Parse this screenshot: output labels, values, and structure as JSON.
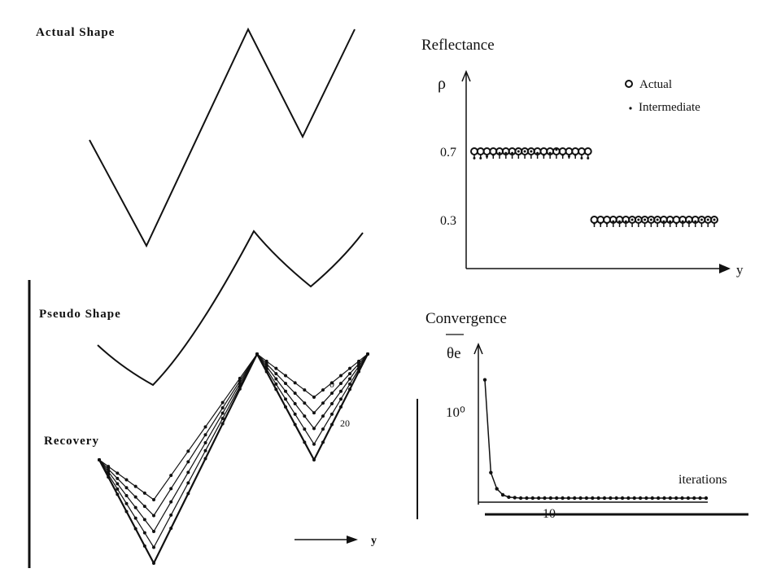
{
  "labels": {
    "actual_shape": "Actual Shape",
    "pseudo_shape": "Pseudo Shape",
    "recovery": "Recovery",
    "recovery_axis": "y",
    "recovery_iter_0": "0",
    "recovery_iter_20": "20",
    "reflectance_title": "Reflectance",
    "reflectance_ylabel": "ρ",
    "reflectance_xlabel": "y",
    "legend_actual": "Actual",
    "legend_intermediate": "Intermediate",
    "convergence_title": "Convergence",
    "convergence_ylabel": "θe",
    "convergence_xlabel": "iterations"
  },
  "chart_data": [
    {
      "type": "line",
      "title": "Reflectance",
      "ylabel": "ρ",
      "xlabel": "y",
      "yticks": [
        "0.7",
        "0.3"
      ],
      "series": [
        {
          "name": "Actual",
          "y": [
            0.7,
            0.7,
            0.7,
            0.7,
            0.7,
            0.7,
            0.7,
            0.7,
            0.7,
            0.7,
            0.7,
            0.7,
            0.7,
            0.7,
            0.7,
            0.7,
            0.7,
            0.7,
            0.7,
            0.3,
            0.3,
            0.3,
            0.3,
            0.3,
            0.3,
            0.3,
            0.3,
            0.3,
            0.3,
            0.3,
            0.3,
            0.3,
            0.3,
            0.3,
            0.3,
            0.3,
            0.3,
            0.3,
            0.3
          ]
        },
        {
          "name": "Intermediate",
          "y": [
            0.66,
            0.66,
            0.67,
            0.68,
            0.69,
            0.69,
            0.69,
            0.7,
            0.7,
            0.7,
            0.69,
            0.68,
            0.69,
            0.71,
            0.68,
            0.67,
            0.68,
            0.66,
            0.66,
            0.28,
            0.28,
            0.28,
            0.29,
            0.29,
            0.29,
            0.3,
            0.3,
            0.3,
            0.3,
            0.3,
            0.29,
            0.29,
            0.28,
            0.29,
            0.29,
            0.29,
            0.3,
            0.3,
            0.3
          ]
        }
      ]
    },
    {
      "type": "line",
      "title": "Convergence",
      "ylabel": "θe",
      "xlabel": "iterations",
      "ytick": "10⁰",
      "xtick": "10",
      "series": [
        {
          "name": "",
          "x": [
            1,
            2,
            3,
            4,
            5,
            6,
            7,
            8,
            9,
            10,
            11,
            12,
            13,
            14,
            15,
            16,
            17,
            18,
            19,
            20,
            21,
            22,
            23,
            24,
            25,
            26,
            27,
            28,
            29,
            30,
            31,
            32,
            33,
            34,
            35,
            36,
            37,
            38
          ],
          "y": [
            2.6,
            0.6,
            0.25,
            0.12,
            0.07,
            0.06,
            0.05,
            0.05,
            0.05,
            0.05,
            0.05,
            0.05,
            0.05,
            0.05,
            0.05,
            0.05,
            0.05,
            0.05,
            0.05,
            0.05,
            0.05,
            0.05,
            0.05,
            0.05,
            0.05,
            0.05,
            0.05,
            0.05,
            0.05,
            0.05,
            0.05,
            0.05,
            0.05,
            0.05,
            0.05,
            0.05,
            0.05,
            0.05
          ]
        }
      ]
    }
  ]
}
